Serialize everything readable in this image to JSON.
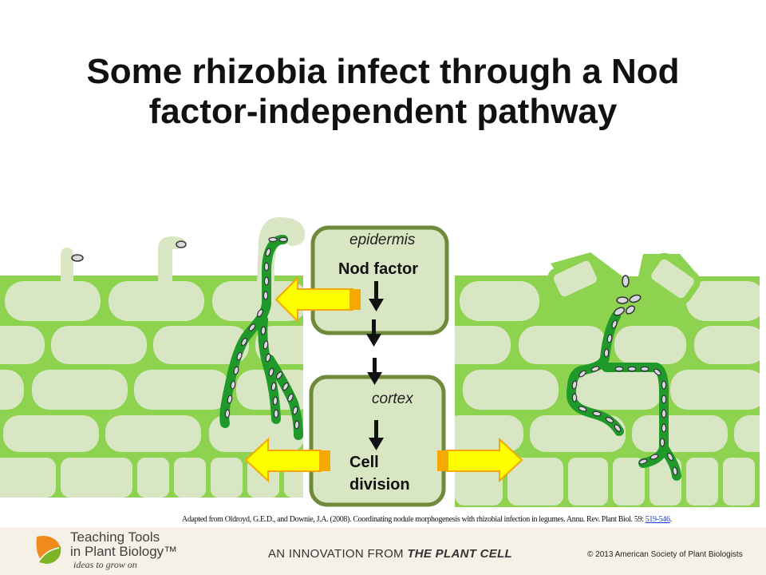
{
  "title": {
    "line1": "Some rhizobia infect through a Nod",
    "line2": "factor-independent pathway"
  },
  "diagram": {
    "top_box": {
      "label": "epidermis",
      "step": "Nod factor"
    },
    "bottom_box": {
      "label": "cortex",
      "step_line1": "Cell",
      "step_line2": "division"
    }
  },
  "citation": {
    "text": "Adapted from Oldroyd, G.E.D., and Downie, J.A. (2008). Coordinating nodule morphogenesis with rhizobial infection in legumes. Annu. Rev. Plant Biol. 59: ",
    "link": "519-546",
    "tail": "."
  },
  "footer": {
    "logo_line1": "Teaching Tools",
    "logo_line2": "in Plant Biology™",
    "tagline": "ideas to grow on",
    "innovation_prefix": "AN INNOVATION FROM ",
    "innovation_brand": "THE PLANT CELL",
    "copyright": "© 2013 American Society of Plant Biologists"
  },
  "colors": {
    "cell_fill": "#d8e6c3",
    "tissue_green": "#8dd34f",
    "thread_green": "#1f9a2a",
    "box_border": "#6f8a3a",
    "arrow_yellow": "#ffff00",
    "arrow_orange": "#f5a800"
  },
  "icons": [
    "arrow-left-icon",
    "arrow-right-icon",
    "arrow-down-icon",
    "teaching-tools-leaf-icon"
  ]
}
